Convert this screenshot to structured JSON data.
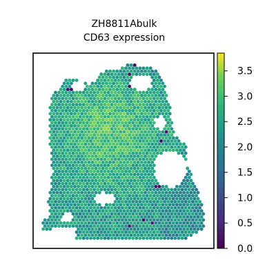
{
  "chart_data": {
    "type": "heatmap",
    "title": "ZH8811Abulk",
    "subtitle": "CD63 expression",
    "xlabel": "",
    "ylabel": "",
    "colormap": "viridis",
    "colorbar": {
      "min": 0.0,
      "max": 3.85,
      "ticks": [
        0.0,
        0.5,
        1.0,
        1.5,
        2.0,
        2.5,
        3.0,
        3.5
      ],
      "tick_labels": [
        "0.0",
        "0.5",
        "1.0",
        "1.5",
        "2.0",
        "2.5",
        "3.0",
        "3.5"
      ]
    },
    "typical_value_range": [
      1.8,
      3.6
    ],
    "grid": false,
    "axis_ticks": false,
    "spots": "hexagonal spatial spots forming a tissue section with several holes; a few low-expression (dark purple) spots near the right edge"
  }
}
